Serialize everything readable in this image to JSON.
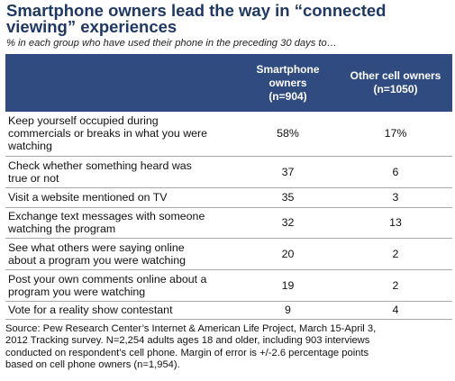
{
  "title": "Smartphone owners lead the way in “connected viewing” experiences",
  "subtitle": "% in each group who have used their phone in the preceding 30 days to…",
  "columns": {
    "smartphone": [
      "Smartphone",
      "owners",
      "(n=904)"
    ],
    "other": [
      "Other cell owners",
      "(n=1050)"
    ]
  },
  "chart_data": {
    "type": "table",
    "rows": [
      {
        "label": [
          "Keep yourself occupied during",
          "commercials or breaks in what you were",
          "watching"
        ],
        "smartphone": "58%",
        "other": "17%"
      },
      {
        "label": [
          "Check whether something heard was",
          "true or not"
        ],
        "smartphone": "37",
        "other": "6"
      },
      {
        "label": [
          "Visit a website mentioned on TV"
        ],
        "smartphone": "35",
        "other": "3"
      },
      {
        "label": [
          "Exchange text messages with someone",
          "watching the program"
        ],
        "smartphone": "32",
        "other": "13"
      },
      {
        "label": [
          "See what others were saying online",
          "about a program you were watching"
        ],
        "smartphone": "20",
        "other": "2"
      },
      {
        "label": [
          "Post your own comments online about a",
          "program you were watching"
        ],
        "smartphone": "19",
        "other": "2"
      },
      {
        "label": [
          "Vote for a reality show contestant"
        ],
        "smartphone": "9",
        "other": "4"
      }
    ]
  },
  "source": [
    "Source: Pew Research Center’s Internet & American Life Project, March 15-April 3,",
    "2012 Tracking survey. N=2,254 adults ages 18 and older, including 903 interviews",
    "conducted on respondent’s cell phone. Margin of error is +/-2.6 percentage points",
    "based on cell phone owners (n=1,954)."
  ]
}
